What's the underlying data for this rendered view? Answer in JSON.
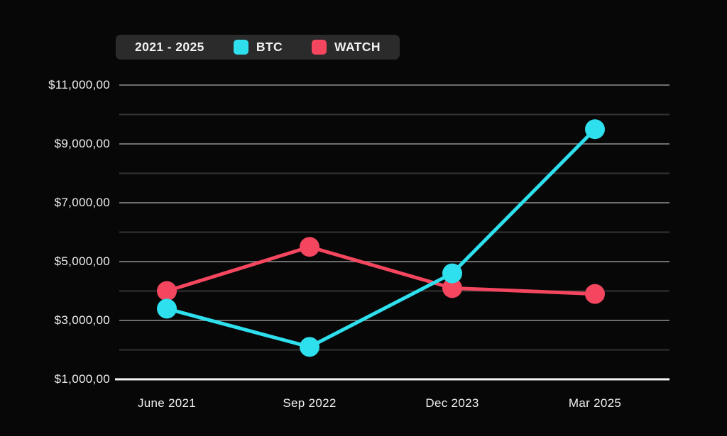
{
  "legend": {
    "period_label": "2021 - 2025",
    "items": [
      {
        "label": "BTC",
        "color": "#2edfed"
      },
      {
        "label": "WATCH",
        "color": "#f4475f"
      }
    ]
  },
  "chart_data": {
    "type": "line",
    "title": "",
    "categories": [
      "June 2021",
      "Sep 2022",
      "Dec 2023",
      "Mar 2025"
    ],
    "series": [
      {
        "name": "WATCH",
        "color": "#f4475f",
        "values": [
          4000,
          5500,
          4100,
          3900
        ]
      },
      {
        "name": "BTC",
        "color": "#2edfed",
        "values": [
          3400,
          2100,
          4600,
          9500
        ]
      }
    ],
    "y_axis": {
      "tick_labels": [
        "$11,000,00",
        "$9,000,00",
        "$7,000,00",
        "$5,000,00",
        "$3,000,00",
        "$1,000,00"
      ],
      "tick_values": [
        11000,
        9000,
        7000,
        5000,
        3000,
        1000
      ],
      "minor_tick_values": [
        10000,
        8000,
        6000,
        4000,
        2000
      ],
      "range": [
        1000,
        11000
      ]
    },
    "grid": {
      "major_color": "#6e6e6e",
      "minor_color": "#333333",
      "axis_color": "#f5f5f5",
      "grid_on": true
    },
    "legend_position": "top-left",
    "background_color": "#070707",
    "marker_radius": 14,
    "line_width": 5
  }
}
